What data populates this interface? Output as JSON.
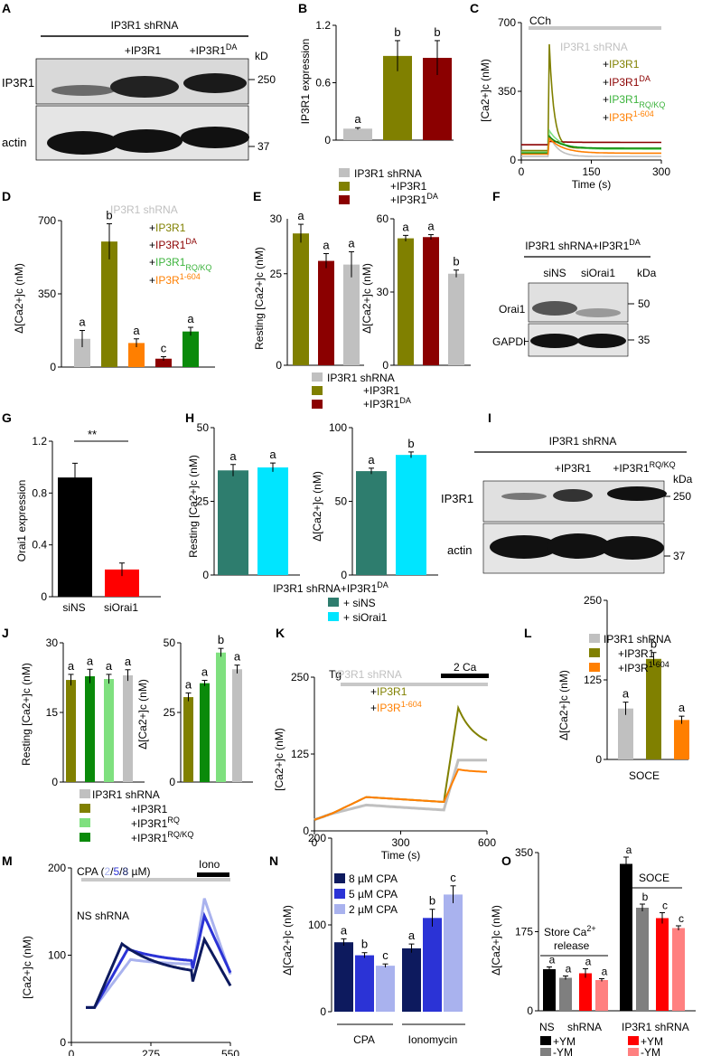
{
  "colors": {
    "gray": "#c0c0c0",
    "olive": "#808000",
    "darkred": "#8b0000",
    "lightgreen": "#7fe07f",
    "green": "#0a8a0a",
    "orange": "#ff7f00",
    "red": "#ff0000",
    "black": "#000000",
    "teal": "#2e7d6e",
    "cyan": "#00e5ff",
    "navy": "#0d1a5e",
    "blue": "#2b33d6",
    "lavender": "#a9b2ee",
    "salmon": "#ff8080",
    "darkgray": "#7f7f7f"
  },
  "text": {
    "shrna": "IP3R1 shRNA",
    "plus_r1": "+IP3R1",
    "plus_da": "+IP3R1",
    "da_sup": "DA",
    "plus_rqkq": "+IP3R1",
    "rqkq_sub": "RQ/KQ",
    "plus_604": "+IP3R",
    "sup_604": "1-604",
    "plus_rq": "+IP3R1",
    "rq_sup": "RQ",
    "kd": "kD",
    "kda": "kDa",
    "ip3r1": "IP3R1",
    "actin": "actin",
    "orai1": "Orai1",
    "gapdh": "GAPDH",
    "sins": "siNS",
    "siorai1": "siOrai1",
    "shrna_da": "IP3R1 shRNA+IP3R1",
    "plus_sins": "+ siNS",
    "plus_siorai1": "+ siOrai1",
    "cch": "CCh",
    "tg": "Tg",
    "two_ca": "2 Ca",
    "iono": "Iono",
    "cpa_label": "CPA (",
    "cpa_2": "2",
    "cpa_5": "5",
    "cpa_8": "8",
    "cpa_um": " µM)",
    "ns_shrna": "NS shRNA",
    "soce": "SOCE",
    "cpa": "CPA",
    "ionomycin": "Ionomycin",
    "store_release_1": "Store Ca",
    "store_release_2": "release",
    "ns": "NS",
    "shrna_word": "shRNA",
    "ip3r1_shrna": "IP3R1 shRNA",
    "plus_ym": "+YM",
    "minus_ym": "-YM",
    "time_s": "Time (s)",
    "ip3r1_expression": "IP3R1 expression",
    "orai1_expression": "Orai1 expression",
    "stars": "**",
    "cpa8": "8 µM CPA",
    "cpa5": "5 µM CPA",
    "cpa2": "2 µM CPA",
    "blot_a_kd": [
      "250",
      "37"
    ],
    "blot_f_kd": [
      "50",
      "35"
    ],
    "blot_i_kd": [
      "250",
      "37"
    ]
  },
  "panel_letters": [
    "A",
    "B",
    "C",
    "D",
    "E",
    "F",
    "G",
    "H",
    "I",
    "J",
    "K",
    "L",
    "M",
    "N",
    "O"
  ],
  "chart_data": [
    {
      "panel": "B",
      "type": "bar",
      "ylabel": "IP3R1 expression",
      "ylim": [
        0,
        1.2
      ],
      "yticks": [
        0,
        0.6,
        1.2
      ],
      "categories": [
        "IP3R1 shRNA",
        "+IP3R1",
        "+IP3R1DA"
      ],
      "values": [
        0.12,
        0.88,
        0.86
      ],
      "errors": [
        0.01,
        0.16,
        0.18
      ],
      "letters": [
        "a",
        "b",
        "b"
      ],
      "colors": [
        "gray",
        "olive",
        "darkred"
      ]
    },
    {
      "panel": "C",
      "type": "line",
      "ylabel": "[Ca2+]c (nM)",
      "xlabel": "Time (s)",
      "xlim": [
        0,
        300
      ],
      "ylim": [
        0,
        700
      ],
      "xticks": [
        0,
        150,
        300
      ],
      "yticks": [
        0,
        350,
        700
      ],
      "annotation": "CCh",
      "stimulus_start": 60,
      "series": [
        {
          "color": "gray",
          "base": 18,
          "peak": 130,
          "plateau": 18,
          "decay": 18
        },
        {
          "color": "olive",
          "base": 48,
          "peak": 590,
          "plateau": 60,
          "decay": 10
        },
        {
          "color": "darkred",
          "base": 78,
          "peak": 95,
          "plateau": 90,
          "decay": 30
        },
        {
          "color": "lightgreen",
          "base": 40,
          "peak": 150,
          "plateau": 55,
          "decay": 25
        },
        {
          "color": "green",
          "base": 35,
          "peak": 120,
          "plateau": 60,
          "decay": 25
        },
        {
          "color": "orange",
          "base": 30,
          "peak": 110,
          "plateau": 35,
          "decay": 30
        }
      ]
    },
    {
      "panel": "D",
      "type": "bar",
      "ylabel": "Δ[Ca2+]c (nM)",
      "ylim": [
        0,
        700
      ],
      "yticks": [
        0,
        350,
        700
      ],
      "values": [
        135,
        600,
        115,
        40,
        170
      ],
      "errors": [
        40,
        85,
        20,
        10,
        20
      ],
      "letters": [
        "a",
        "b",
        "a",
        "c",
        "a"
      ],
      "colors": [
        "gray",
        "olive",
        "orange",
        "darkred",
        "green"
      ]
    },
    {
      "panel": "E1",
      "type": "bar",
      "ylabel": "Resting [Ca2+]c (nM)",
      "ylim": [
        0,
        30
      ],
      "yticks": [
        0,
        25,
        50
      ],
      "values": [
        36,
        28.5,
        27.5
      ],
      "errors": [
        2.5,
        2,
        3.5
      ],
      "letters": [
        "a",
        "a",
        "a"
      ],
      "colors": [
        "olive",
        "darkred",
        "gray"
      ]
    },
    {
      "panel": "E2",
      "type": "bar",
      "ylabel": "Δ[Ca2+]c (nM)",
      "ylim": [
        0,
        60
      ],
      "yticks": [
        0,
        30,
        60
      ],
      "values": [
        52,
        52.5,
        37.5
      ],
      "errors": [
        1.2,
        1,
        1.5
      ],
      "letters": [
        "a",
        "a",
        "b"
      ],
      "colors": [
        "olive",
        "darkred",
        "gray"
      ]
    },
    {
      "panel": "G",
      "type": "bar",
      "ylabel": "Orai1 expression",
      "ylim": [
        0,
        1.2
      ],
      "yticks": [
        0,
        0.4,
        0.8,
        1.2
      ],
      "categories": [
        "siNS",
        "siOrai1"
      ],
      "values": [
        0.92,
        0.21
      ],
      "errors": [
        0.11,
        0.05
      ],
      "colors": [
        "black",
        "red"
      ],
      "sig": "**"
    },
    {
      "panel": "H1",
      "type": "bar",
      "ylabel": "Resting [Ca2+]c (nM)",
      "ylim": [
        0,
        50
      ],
      "yticks": [
        0,
        25,
        50
      ],
      "values": [
        35.5,
        36.5
      ],
      "errors": [
        2,
        1.5
      ],
      "letters": [
        "a",
        "a"
      ],
      "colors": [
        "teal",
        "cyan"
      ]
    },
    {
      "panel": "H2",
      "type": "bar",
      "ylabel": "Δ[Ca2+]c (nM)",
      "ylim": [
        0,
        100
      ],
      "yticks": [
        0,
        50,
        100
      ],
      "values": [
        70.5,
        81.5
      ],
      "errors": [
        2,
        2
      ],
      "letters": [
        "a",
        "b"
      ],
      "colors": [
        "teal",
        "cyan"
      ]
    },
    {
      "panel": "J1",
      "type": "bar",
      "ylabel": "Resting [Ca2+]c (nM)",
      "ylim": [
        0,
        30
      ],
      "yticks": [
        0,
        15,
        30
      ],
      "values": [
        22,
        22.8,
        22.2,
        23
      ],
      "errors": [
        1.2,
        1.5,
        1,
        1.2
      ],
      "letters": [
        "a",
        "a",
        "a",
        "a"
      ],
      "colors": [
        "olive",
        "green",
        "lightgreen",
        "gray"
      ]
    },
    {
      "panel": "J2",
      "type": "bar",
      "ylabel": "Δ[Ca2+]c (nM)",
      "ylim": [
        0,
        50
      ],
      "yticks": [
        0,
        25,
        50
      ],
      "values": [
        30.5,
        35.5,
        46.5,
        40.5
      ],
      "errors": [
        1.5,
        1,
        1.5,
        1.5
      ],
      "letters": [
        "a",
        "a",
        "b",
        "a"
      ],
      "colors": [
        "olive",
        "green",
        "lightgreen",
        "gray"
      ]
    },
    {
      "panel": "K",
      "type": "line",
      "ylabel": "[Ca2+]c (nM)",
      "xlabel": "Time (s)",
      "xlim": [
        0,
        600
      ],
      "ylim": [
        0,
        250
      ],
      "xticks": [
        0,
        300,
        600
      ],
      "yticks": [
        0,
        125,
        250
      ],
      "series": [
        {
          "color": "gray",
          "pre": 42,
          "soce_peak": 115,
          "soce_end": 115
        },
        {
          "color": "olive",
          "pre": 55,
          "soce_peak": 200,
          "soce_end": 135
        },
        {
          "color": "orange",
          "pre": 55,
          "soce_peak": 100,
          "soce_end": 95
        }
      ]
    },
    {
      "panel": "L",
      "type": "bar",
      "ylabel": "Δ[Ca2+]c (nM)",
      "xlabel": "SOCE",
      "ylim": [
        0,
        250
      ],
      "yticks": [
        0,
        125,
        250
      ],
      "values": [
        80,
        158,
        62
      ],
      "errors": [
        10,
        10,
        6
      ],
      "letters": [
        "a",
        "b",
        "a"
      ],
      "colors": [
        "gray",
        "olive",
        "orange"
      ]
    },
    {
      "panel": "M",
      "type": "line",
      "ylabel": "[Ca2+]c (nM)",
      "xlabel": "Time (s)",
      "xlim": [
        0,
        550
      ],
      "ylim": [
        0,
        200
      ],
      "xticks": [
        0,
        275,
        550
      ],
      "yticks": [
        0,
        100,
        200
      ],
      "series": [
        {
          "color": "navy",
          "peak": 113,
          "peak_t": 175,
          "plateau": 75,
          "iono_peak": 118
        },
        {
          "color": "blue",
          "peak": 107,
          "peak_t": 195,
          "plateau": 90,
          "iono_peak": 145
        },
        {
          "color": "lavender",
          "peak": 95,
          "peak_t": 205,
          "plateau": 88,
          "iono_peak": 165
        }
      ]
    },
    {
      "panel": "N",
      "type": "bar",
      "ylabel": "Δ[Ca2+]c (nM)",
      "ylim": [
        0,
        200
      ],
      "yticks": [
        0,
        100,
        200
      ],
      "groups": [
        "CPA",
        "Ionomycin"
      ],
      "values": [
        [
          80,
          65,
          53
        ],
        [
          73,
          108,
          135
        ]
      ],
      "errors": [
        [
          4,
          3,
          2
        ],
        [
          5,
          10,
          10
        ]
      ],
      "letters": [
        [
          "a",
          "b",
          "c"
        ],
        [
          "a",
          "b",
          "c"
        ]
      ],
      "colors": [
        "navy",
        "blue",
        "lavender"
      ],
      "legend": [
        "8 µM CPA",
        "5 µM CPA",
        "2 µM CPA"
      ]
    },
    {
      "panel": "O",
      "type": "bar",
      "ylabel": "Δ[Ca2+]c (nM)",
      "ylim": [
        0,
        350
      ],
      "yticks": [
        0,
        175,
        350
      ],
      "values": [
        [
          92,
          73,
          83,
          68
        ],
        [
          325,
          228,
          205,
          183
        ]
      ],
      "errors": [
        [
          5,
          4,
          10,
          3
        ],
        [
          15,
          8,
          12,
          5
        ]
      ],
      "letters": [
        [
          "a",
          "a",
          "a",
          "a"
        ],
        [
          "a",
          "b",
          "c",
          "c"
        ]
      ],
      "colors": [
        "black",
        "darkgray",
        "red",
        "salmon"
      ],
      "group_labels": [
        "Store Ca2+ release",
        "SOCE"
      ],
      "x_labels": [
        "NS shRNA",
        "IP3R1 shRNA"
      ]
    }
  ]
}
